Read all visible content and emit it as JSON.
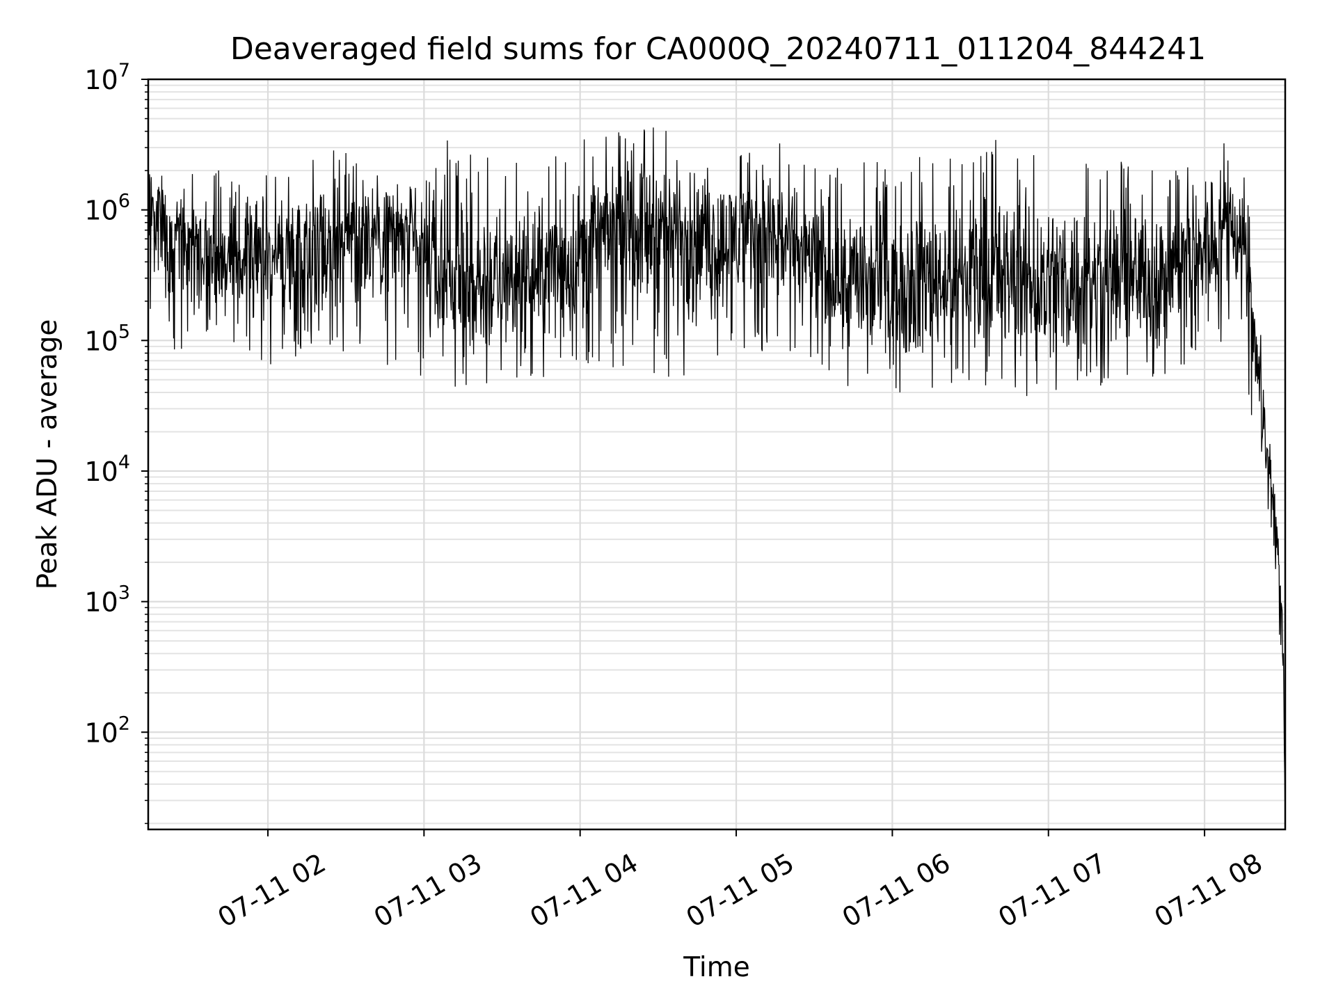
{
  "chart_data": {
    "type": "line",
    "title": "Deaveraged field sums for CA000Q_20240711_011204_844241",
    "xlabel": "Time",
    "ylabel": "Peak ADU - average",
    "y_scale": "log",
    "ylim": [
      18,
      10000000
    ],
    "xlim": [
      "2024-07-11 01:14",
      "2024-07-11 08:31"
    ],
    "grid": true,
    "legend": "none",
    "x_ticks": [
      {
        "t": "2024-07-11 02:00",
        "label": "07-11 02"
      },
      {
        "t": "2024-07-11 03:00",
        "label": "07-11 03"
      },
      {
        "t": "2024-07-11 04:00",
        "label": "07-11 04"
      },
      {
        "t": "2024-07-11 05:00",
        "label": "07-11 05"
      },
      {
        "t": "2024-07-11 06:00",
        "label": "07-11 06"
      },
      {
        "t": "2024-07-11 07:00",
        "label": "07-11 07"
      },
      {
        "t": "2024-07-11 08:00",
        "label": "07-11 08"
      }
    ],
    "y_ticks": [
      {
        "value": 100,
        "mantissa": "10",
        "exponent": "2"
      },
      {
        "value": 1000,
        "mantissa": "10",
        "exponent": "3"
      },
      {
        "value": 10000,
        "mantissa": "10",
        "exponent": "4"
      },
      {
        "value": 100000,
        "mantissa": "10",
        "exponent": "5"
      },
      {
        "value": 1000000,
        "mantissa": "10",
        "exponent": "6"
      },
      {
        "value": 10000000,
        "mantissa": "10",
        "exponent": "7"
      }
    ],
    "series": [
      {
        "color": "#000000",
        "x": [
          "2024-07-11 01:14",
          "2024-07-11 01:20",
          "2024-07-11 01:30",
          "2024-07-11 01:40",
          "2024-07-11 01:50",
          "2024-07-11 02:00",
          "2024-07-11 02:10",
          "2024-07-11 02:20",
          "2024-07-11 02:30",
          "2024-07-11 02:40",
          "2024-07-11 02:50",
          "2024-07-11 03:00",
          "2024-07-11 03:10",
          "2024-07-11 03:20",
          "2024-07-11 03:30",
          "2024-07-11 03:40",
          "2024-07-11 03:50",
          "2024-07-11 04:00",
          "2024-07-11 04:10",
          "2024-07-11 04:20",
          "2024-07-11 04:30",
          "2024-07-11 04:40",
          "2024-07-11 04:50",
          "2024-07-11 05:00",
          "2024-07-11 05:10",
          "2024-07-11 05:20",
          "2024-07-11 05:30",
          "2024-07-11 05:40",
          "2024-07-11 05:50",
          "2024-07-11 06:00",
          "2024-07-11 06:10",
          "2024-07-11 06:20",
          "2024-07-11 06:30",
          "2024-07-11 06:40",
          "2024-07-11 06:50",
          "2024-07-11 07:00",
          "2024-07-11 07:10",
          "2024-07-11 07:20",
          "2024-07-11 07:30",
          "2024-07-11 07:40",
          "2024-07-11 07:50",
          "2024-07-11 08:00",
          "2024-07-11 08:10",
          "2024-07-11 08:14",
          "2024-07-11 08:17",
          "2024-07-11 08:20",
          "2024-07-11 08:23",
          "2024-07-11 08:26",
          "2024-07-11 08:28",
          "2024-07-11 08:30",
          "2024-07-11 08:31"
        ],
        "median": [
          1300000,
          900000,
          500000,
          400000,
          450000,
          500000,
          500000,
          550000,
          650000,
          800000,
          700000,
          400000,
          300000,
          250000,
          250000,
          300000,
          350000,
          500000,
          700000,
          800000,
          800000,
          700000,
          600000,
          700000,
          700000,
          600000,
          400000,
          300000,
          300000,
          250000,
          300000,
          300000,
          300000,
          300000,
          300000,
          250000,
          300000,
          300000,
          300000,
          300000,
          400000,
          600000,
          800000,
          700000,
          300000,
          100000,
          20000,
          8000,
          3000,
          500,
          30
        ],
        "high": [
          2800000,
          2000000,
          2200000,
          2300000,
          2000000,
          2000000,
          2200000,
          3300000,
          3000000,
          3000000,
          2800000,
          2200000,
          3600000,
          2500000,
          2600000,
          2300000,
          2600000,
          3500000,
          4600000,
          3500000,
          5400000,
          3100000,
          2600000,
          3000000,
          5300000,
          2600000,
          2400000,
          2500000,
          2400000,
          2500000,
          2600000,
          2700000,
          2500000,
          3600000,
          2400000,
          3600000,
          2300000,
          2500000,
          2300000,
          2300000,
          2300000,
          2700000,
          3600000,
          2800000,
          1200000,
          300000,
          50000,
          15000,
          5000,
          1500,
          200
        ],
        "low": [
          200000,
          50000,
          100000,
          100000,
          80000,
          60000,
          60000,
          90000,
          60000,
          60000,
          60000,
          50000,
          40000,
          40000,
          45000,
          50000,
          50000,
          60000,
          60000,
          60000,
          50000,
          50000,
          60000,
          80000,
          80000,
          70000,
          60000,
          45000,
          40000,
          35000,
          30000,
          40000,
          40000,
          40000,
          35000,
          30000,
          40000,
          40000,
          40000,
          40000,
          40000,
          90000,
          100000,
          150000,
          30000,
          20000,
          6000,
          3000,
          800,
          200,
          18
        ]
      }
    ]
  }
}
